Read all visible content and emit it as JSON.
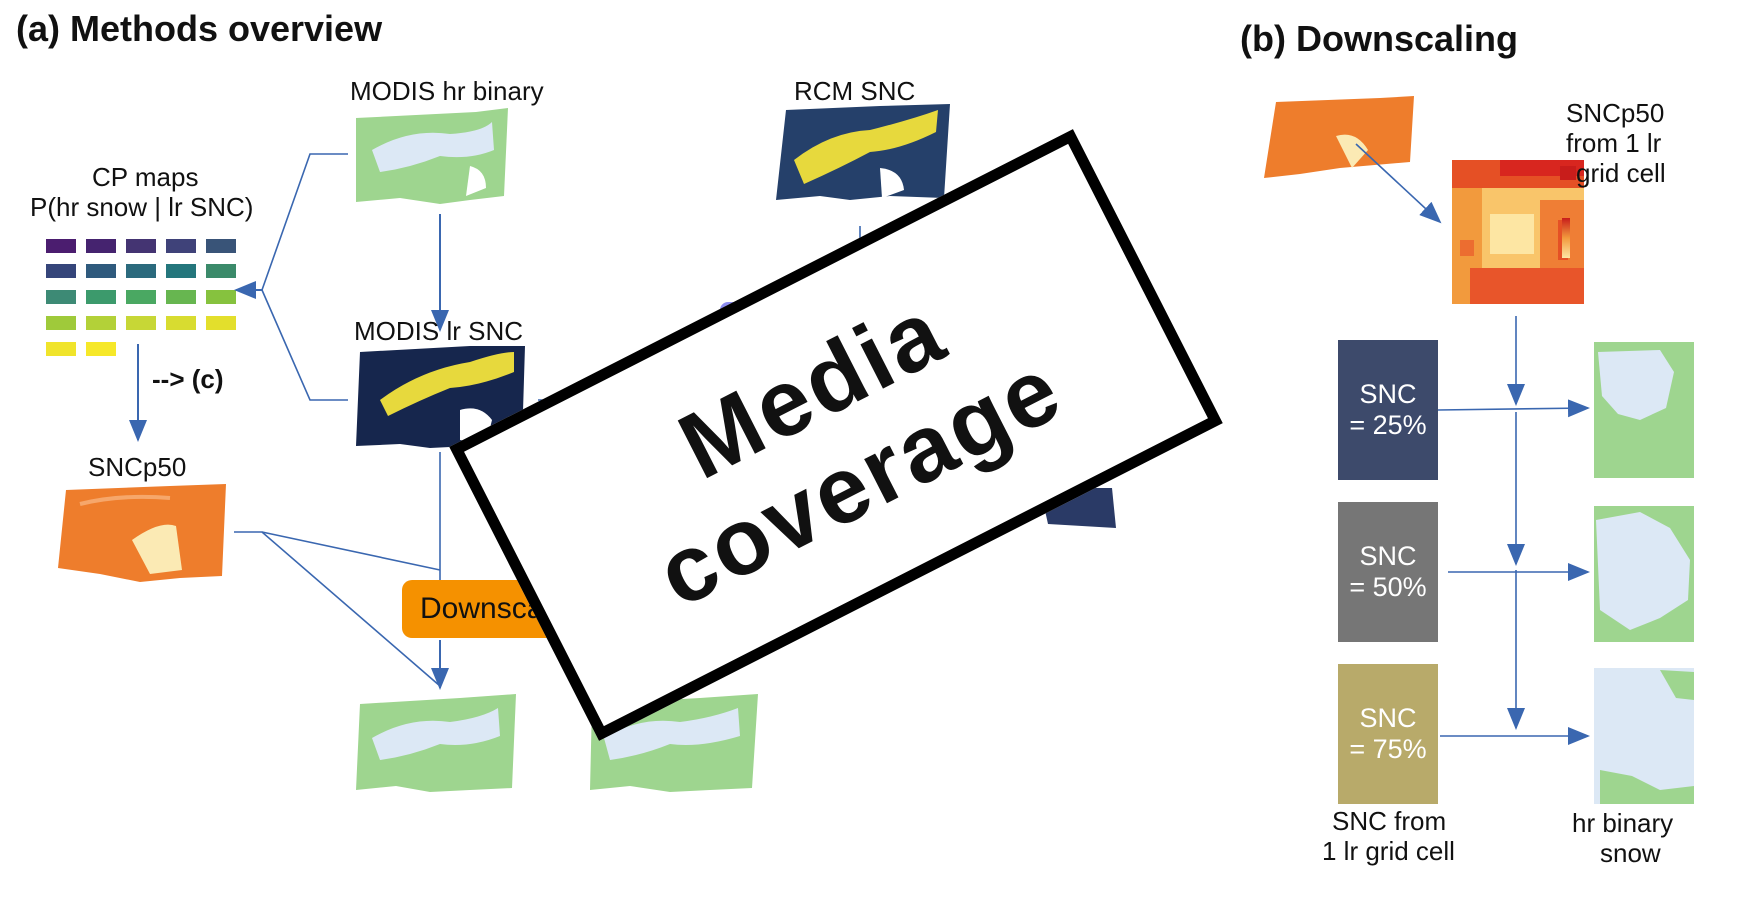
{
  "panel_a": {
    "title": "(a) Methods overview",
    "cp_maps_label_1": "CP maps",
    "cp_maps_label_2": "P(hr snow | lr SNC)",
    "modis_hr_label": "MODIS hr binary",
    "modis_lr_label": "MODIS lr SNC",
    "rcm_label": "RCM SNC",
    "sncp50_label": "SNCp50",
    "arrow_c_label": "--> (c)",
    "downscaling_button": "Downscaling"
  },
  "panel_b": {
    "title": "(b) Downscaling",
    "sncp50_label_1": "SNCp50",
    "sncp50_label_2": "from 1 lr",
    "sncp50_label_3": "grid cell",
    "snc_boxes": [
      {
        "line1": "SNC",
        "line2": "= 25%",
        "color": "#3d4a6b"
      },
      {
        "line1": "SNC",
        "line2": "= 50%",
        "color": "#767676"
      },
      {
        "line1": "SNC",
        "line2": "= 75%",
        "color": "#b8aa6a"
      }
    ],
    "snc_from_label_1": "SNC from",
    "snc_from_label_2": "1 lr grid cell",
    "hr_binary_label_1": "hr binary",
    "hr_binary_label_2": "snow"
  },
  "overlay": {
    "line1": "Media",
    "line2": "coverage"
  },
  "colors": {
    "arrow": "#3a67b0",
    "snow_green": "#9ed58f",
    "snow_white": "#dce8f5",
    "rcm_navy": "#25406a",
    "rcm_yellow": "#e7d93d",
    "sncp50_orange": "#ee7d2c",
    "orange_button": "#f59100"
  }
}
